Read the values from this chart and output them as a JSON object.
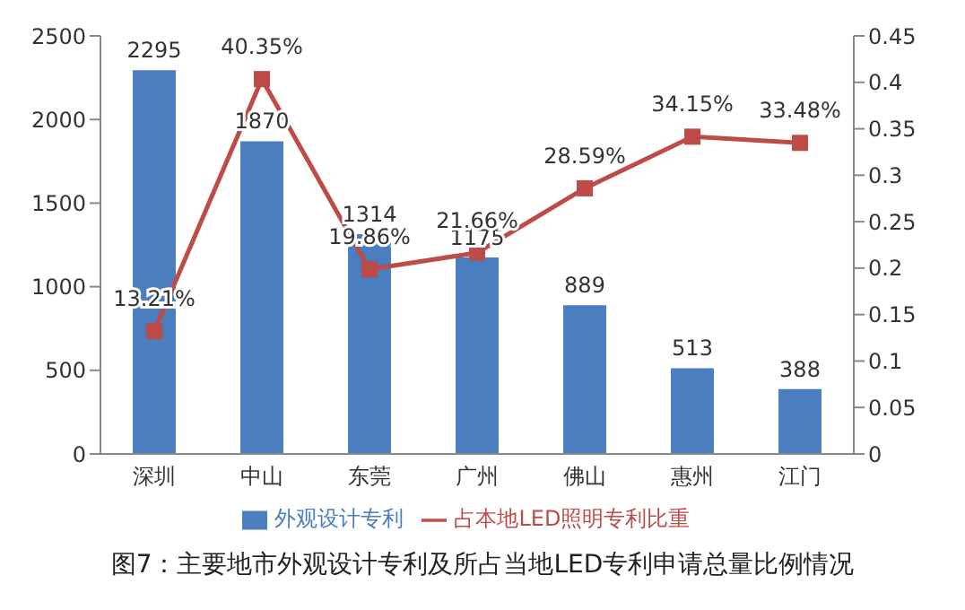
{
  "chart_data": {
    "type": "bar",
    "categories": [
      "深圳",
      "中山",
      "东莞",
      "广州",
      "佛山",
      "惠州",
      "江门"
    ],
    "series": [
      {
        "name": "外观设计专利",
        "color": "#4a7ebf",
        "values": [
          2295,
          1870,
          1314,
          1175,
          889,
          513,
          388
        ],
        "value_labels": [
          "2295",
          "1870",
          "1314",
          "1175",
          "889",
          "513",
          "388"
        ]
      },
      {
        "name": "占本地LED照明专利比重",
        "type": "line",
        "axis": "y2",
        "color": "#be4b48",
        "values": [
          0.1321,
          0.4035,
          0.1986,
          0.2166,
          0.2859,
          0.3415,
          0.3348
        ],
        "value_labels": [
          "13.21%",
          "40.35%",
          "19.86%",
          "21.66%",
          "28.59%",
          "34.15%",
          "33.48%"
        ]
      }
    ],
    "ylim": [
      0,
      2500
    ],
    "yticks": [
      0,
      500,
      1000,
      1500,
      2000,
      2500
    ],
    "y2lim": [
      0,
      0.45
    ],
    "y2ticks": [
      0,
      0.05,
      0.1,
      0.15,
      0.2,
      0.25,
      0.3,
      0.35,
      0.4,
      0.45
    ],
    "grid": false,
    "legend": "bottom",
    "marker": "square",
    "line_style": "solid",
    "annotations": [
      "图7：主要地市外观设计专利及所占当地LED专利申请总量比例情况"
    ]
  }
}
